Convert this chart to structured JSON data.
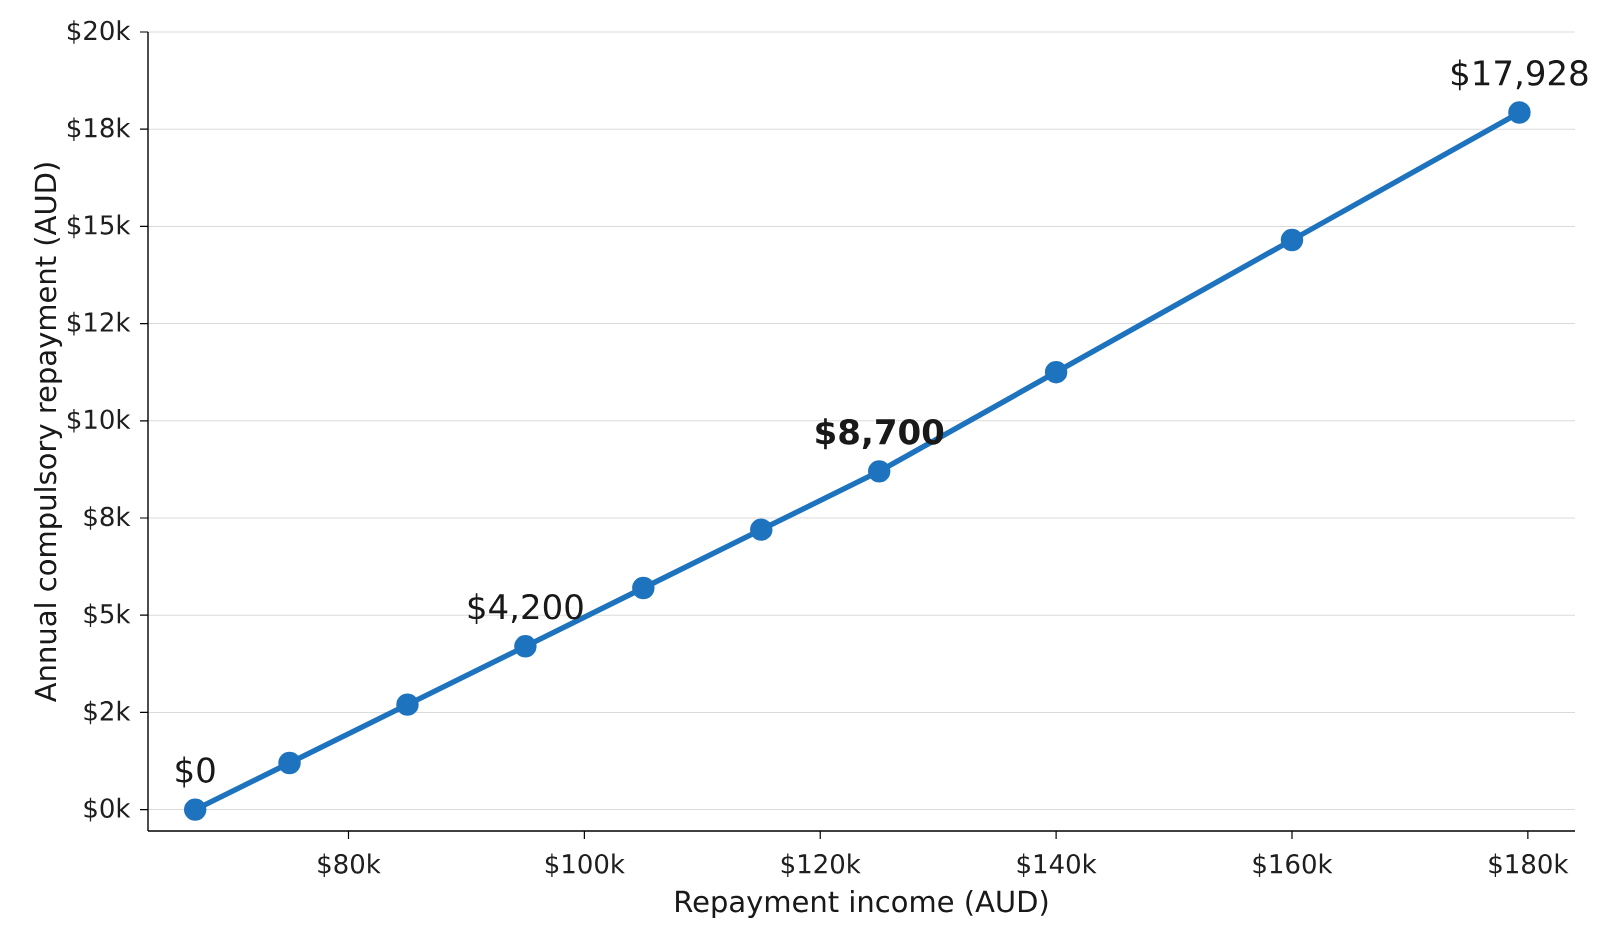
{
  "chart_data": {
    "type": "line",
    "xlabel": "Repayment income (AUD)",
    "ylabel": "Annual compulsory repayment (AUD)",
    "x": [
      67000,
      75000,
      85000,
      95000,
      105000,
      115000,
      125000,
      140000,
      160000,
      179286
    ],
    "series": [
      {
        "color": "#1e73be",
        "values": [
          0,
          1200,
          2700,
          4200,
          5700,
          7200,
          8700,
          11250,
          14650,
          17928
        ],
        "value_labels": [
          "$0",
          null,
          null,
          "$4,200",
          null,
          null,
          "**$8,700**",
          null,
          null,
          "$17,928"
        ]
      }
    ],
    "xlim": [
      63000,
      184000
    ],
    "ylim": [
      -550,
      20000
    ],
    "xticks": [
      {
        "value": 80000,
        "label": "$80k"
      },
      {
        "value": 100000,
        "label": "$100k"
      },
      {
        "value": 120000,
        "label": "$120k"
      },
      {
        "value": 140000,
        "label": "$140k"
      },
      {
        "value": 160000,
        "label": "$160k"
      },
      {
        "value": 180000,
        "label": "$180k"
      }
    ],
    "yticks": [
      {
        "value": 0,
        "label": "$0k"
      },
      {
        "value": 2500,
        "label": "$2k"
      },
      {
        "value": 5000,
        "label": "$5k"
      },
      {
        "value": 7500,
        "label": "$8k"
      },
      {
        "value": 10000,
        "label": "$10k"
      },
      {
        "value": 12500,
        "label": "$12k"
      },
      {
        "value": 15000,
        "label": "$15k"
      },
      {
        "value": 17500,
        "label": "$18k"
      },
      {
        "value": 20000,
        "label": "$20k"
      }
    ],
    "grid": "y",
    "marker": "circle",
    "line_style": "solid"
  }
}
